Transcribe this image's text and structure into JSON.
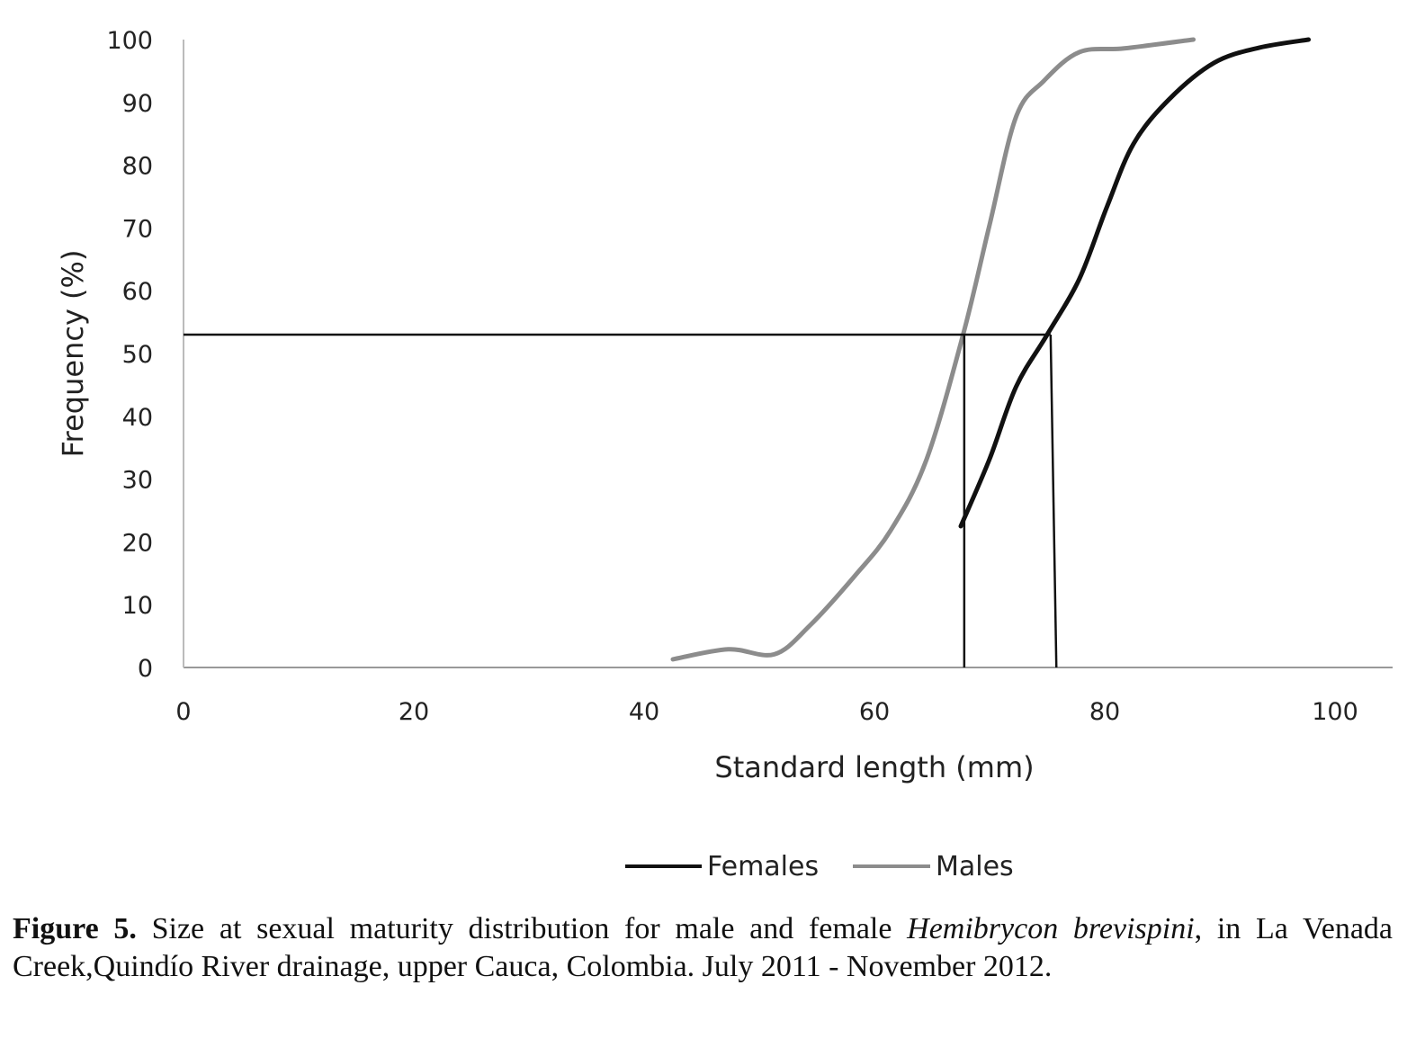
{
  "chart_data": {
    "type": "line",
    "title": "",
    "xlabel": "Standard length (mm)",
    "ylabel": "Frequency (%)",
    "xlim": [
      0,
      105
    ],
    "ylim": [
      0,
      100
    ],
    "xticks": [
      0,
      20,
      40,
      60,
      80,
      100
    ],
    "yticks": [
      0,
      10,
      20,
      30,
      40,
      50,
      60,
      70,
      80,
      90,
      100
    ],
    "grid": false,
    "legend_position": "bottom",
    "series": [
      {
        "name": "Females",
        "color": "#111111",
        "x": [
          67.5,
          70.0,
          72.3,
          75.0,
          77.8,
          80.2,
          82.5,
          85.6,
          89.5,
          93.4,
          97.7
        ],
        "y": [
          22.5,
          33.2,
          44.7,
          53.0,
          61.9,
          73.4,
          83.4,
          90.5,
          96.3,
          98.7,
          100
        ]
      },
      {
        "name": "Males",
        "color": "#8c8c8c",
        "x": [
          42.5,
          47.3,
          51.3,
          54.4,
          58.3,
          61.4,
          64.5,
          67.7,
          70.0,
          72.3,
          74.7,
          77.8,
          81.7,
          87.7
        ],
        "y": [
          1.3,
          2.9,
          2.1,
          6.7,
          14.6,
          21.8,
          33.0,
          53.0,
          70.5,
          87.7,
          93.4,
          98.0,
          98.6,
          100
        ]
      }
    ],
    "reference_lines": [
      {
        "name": "maturity-horizontal",
        "x": [
          0,
          75.3
        ],
        "y": [
          53,
          53
        ]
      },
      {
        "name": "male-maturity-vertical",
        "x": [
          67.8,
          67.8
        ],
        "y": [
          53,
          0
        ]
      },
      {
        "name": "female-maturity-vertical",
        "x": [
          75.3,
          75.8
        ],
        "y": [
          53,
          0
        ]
      }
    ]
  },
  "caption": {
    "label": "Figure 5.",
    "text_before": " Size at sexual maturity distribution for male and female ",
    "species": "Hemibrycon brevispini",
    "text_after": ", in La Venada Creek,Quindío River drainage, upper Cauca, Colombia. July 2011 - November 2012."
  }
}
